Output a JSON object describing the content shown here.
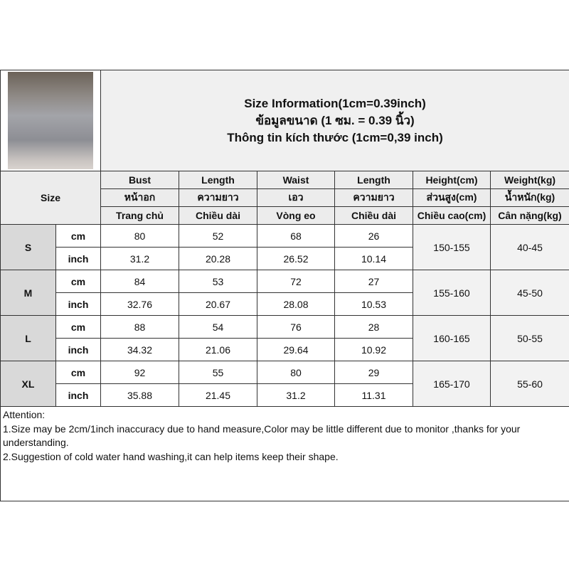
{
  "title_lines": [
    "Size Information(1cm=0.39inch)",
    "ข้อมูลขนาด (1 ซม. = 0.39 นิ้ว)",
    "Thông tin kích thước (1cm=0,39 inch)"
  ],
  "size_label": "Size",
  "columns": [
    [
      "Bust",
      "หน้าอก",
      "Trang chủ"
    ],
    [
      "Length",
      "ความยาว",
      "Chiều dài"
    ],
    [
      "Waist",
      "เอว",
      "Vòng eo"
    ],
    [
      "Length",
      "ความยาว",
      "Chiều dài"
    ],
    [
      "Height(cm)",
      "ส่วนสูง(cm)",
      "Chiều cao(cm)"
    ],
    [
      "Weight(kg)",
      "น้ำหนัก(kg)",
      "Cân nặng(kg)"
    ]
  ],
  "units": [
    "cm",
    "inch"
  ],
  "rows": [
    {
      "size": "S",
      "cm": [
        "80",
        "52",
        "68",
        "26"
      ],
      "inch": [
        "31.2",
        "20.28",
        "26.52",
        "10.14"
      ],
      "height": "150-155",
      "weight": "40-45"
    },
    {
      "size": "M",
      "cm": [
        "84",
        "53",
        "72",
        "27"
      ],
      "inch": [
        "32.76",
        "20.67",
        "28.08",
        "10.53"
      ],
      "height": "155-160",
      "weight": "45-50"
    },
    {
      "size": "L",
      "cm": [
        "88",
        "54",
        "76",
        "28"
      ],
      "inch": [
        "34.32",
        "21.06",
        "29.64",
        "10.92"
      ],
      "height": "160-165",
      "weight": "50-55"
    },
    {
      "size": "XL",
      "cm": [
        "92",
        "55",
        "80",
        "29"
      ],
      "inch": [
        "35.88",
        "21.45",
        "31.2",
        "11.31"
      ],
      "height": "165-170",
      "weight": "55-60"
    }
  ],
  "attention": [
    "Attention:",
    "1.Size may be 2cm/1inch inaccuracy due to hand measure,Color may be little different due to monitor ,thanks for your understanding.",
    "2.Suggestion of cold water hand washing,it can help items keep their shape."
  ]
}
